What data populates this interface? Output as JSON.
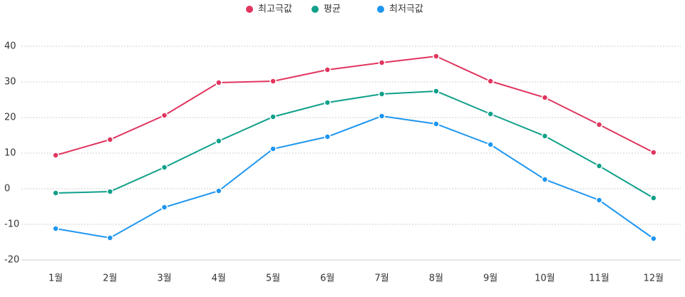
{
  "chart_data": {
    "type": "line",
    "categories": [
      "1월",
      "2월",
      "3월",
      "4월",
      "5월",
      "6월",
      "7월",
      "8월",
      "9월",
      "10월",
      "11월",
      "12월"
    ],
    "series": [
      {
        "name": "최고극값",
        "color": "#e0355e",
        "values": [
          9.4,
          13.8,
          20.6,
          29.8,
          30.2,
          33.4,
          35.4,
          37.2,
          30.2,
          25.6,
          18,
          10.2
        ]
      },
      {
        "name": "평균",
        "color": "#0fa08a",
        "values": [
          -1.2,
          -0.8,
          6,
          13.4,
          20.2,
          24.2,
          26.6,
          27.4,
          21,
          14.8,
          6.4,
          -2.6
        ]
      },
      {
        "name": "최저극값",
        "color": "#1e96f0",
        "values": [
          -11.2,
          -13.8,
          -5.2,
          -0.6,
          11.2,
          14.6,
          20.4,
          18.2,
          12.4,
          2.6,
          -3.2,
          -14
        ]
      }
    ],
    "ylim": [
      -20,
      40
    ],
    "yticks": [
      -20,
      -10,
      0,
      10,
      20,
      30,
      40
    ],
    "grid": true
  }
}
